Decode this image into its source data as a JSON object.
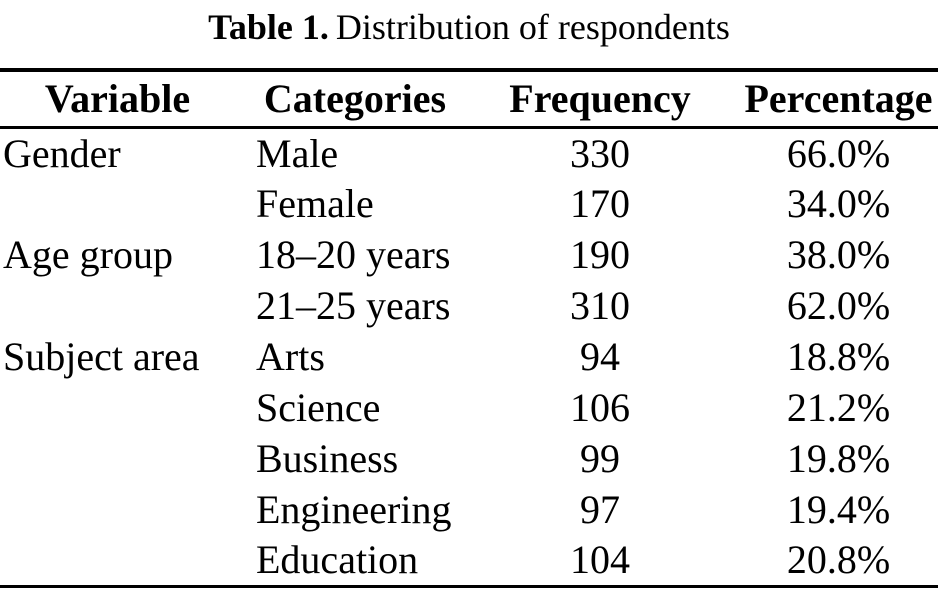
{
  "title": {
    "label": "Table 1.",
    "text": "Distribution of respondents"
  },
  "table": {
    "columns": [
      "Variable",
      "Categories",
      "Frequency",
      "Percentage"
    ],
    "rows": [
      {
        "variable": "Gender",
        "category": "Male",
        "frequency": "330",
        "percentage": "66.0%"
      },
      {
        "variable": "",
        "category": "Female",
        "frequency": "170",
        "percentage": "34.0%"
      },
      {
        "variable": "Age group",
        "category": "18–20 years",
        "frequency": "190",
        "percentage": "38.0%"
      },
      {
        "variable": "",
        "category": "21–25 years",
        "frequency": "310",
        "percentage": "62.0%"
      },
      {
        "variable": "Subject area",
        "category": "Arts",
        "frequency": "94",
        "percentage": "18.8%"
      },
      {
        "variable": "",
        "category": "Science",
        "frequency": "106",
        "percentage": "21.2%"
      },
      {
        "variable": "",
        "category": "Business",
        "frequency": "99",
        "percentage": "19.8%"
      },
      {
        "variable": "",
        "category": "Engineering",
        "frequency": "97",
        "percentage": "19.4%"
      },
      {
        "variable": "",
        "category": "Education",
        "frequency": "104",
        "percentage": "20.8%"
      }
    ]
  },
  "colors": {
    "text": "#000000",
    "background": "#ffffff",
    "rule": "#000000"
  }
}
